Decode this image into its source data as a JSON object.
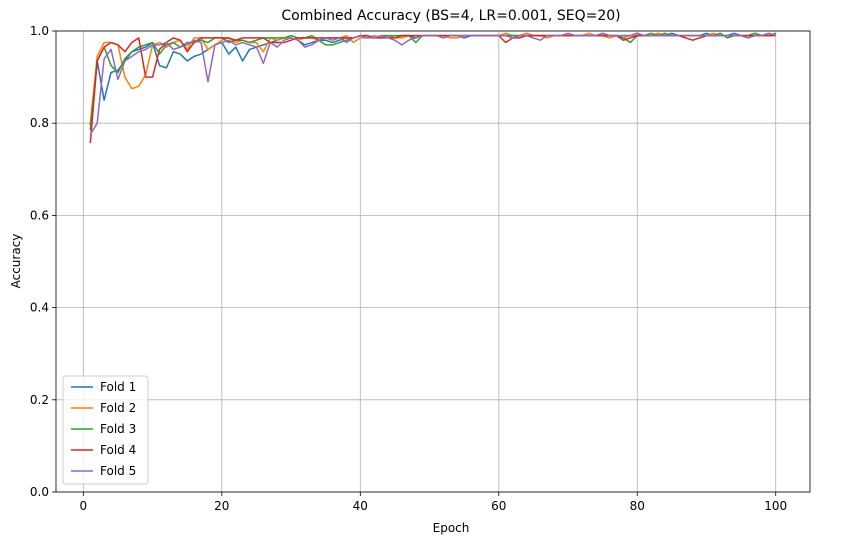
{
  "chart_data": {
    "type": "line",
    "title": "Combined Accuracy (BS=4, LR=0.001, SEQ=20)",
    "xlabel": "Epoch",
    "ylabel": "Accuracy",
    "xlim": [
      -3.95,
      104.95
    ],
    "ylim": [
      0,
      1.0
    ],
    "xticks": [
      0,
      20,
      40,
      60,
      80,
      100
    ],
    "yticks": [
      0.0,
      0.2,
      0.4,
      0.6,
      0.8,
      1.0
    ],
    "ytick_labels": [
      "0.0",
      "0.2",
      "0.4",
      "0.6",
      "0.8",
      "1.0"
    ],
    "grid": true,
    "legend_position": "lower-left",
    "x_start": 1,
    "series": [
      {
        "name": "Fold 1",
        "color": "#1f77b4",
        "values": [
          0.795,
          0.935,
          0.85,
          0.91,
          0.915,
          0.935,
          0.955,
          0.96,
          0.965,
          0.975,
          0.925,
          0.92,
          0.955,
          0.95,
          0.935,
          0.945,
          0.95,
          0.96,
          0.97,
          0.975,
          0.95,
          0.965,
          0.935,
          0.96,
          0.965,
          0.97,
          0.975,
          0.98,
          0.985,
          0.985,
          0.98,
          0.97,
          0.975,
          0.98,
          0.98,
          0.975,
          0.98,
          0.985,
          0.985,
          0.99,
          0.985,
          0.99,
          0.985,
          0.99,
          0.985,
          0.99,
          0.99,
          0.985,
          0.99,
          0.99,
          0.99,
          0.99,
          0.99,
          0.99,
          0.985,
          0.99,
          0.99,
          0.99,
          0.99,
          0.99,
          0.99,
          0.99,
          0.99,
          0.995,
          0.99,
          0.99,
          0.99,
          0.99,
          0.99,
          0.99,
          0.99,
          0.99,
          0.99,
          0.99,
          0.995,
          0.99,
          0.99,
          0.99,
          0.99,
          0.995,
          0.99,
          0.99,
          0.995,
          0.99,
          0.995,
          0.99,
          0.99,
          0.99,
          0.99,
          0.995,
          0.99,
          0.99,
          0.99,
          0.995,
          0.99,
          0.99,
          0.995,
          0.99,
          0.995,
          0.99
        ]
      },
      {
        "name": "Fold 2",
        "color": "#ff7f0e",
        "values": [
          0.8,
          0.945,
          0.975,
          0.975,
          0.97,
          0.9,
          0.875,
          0.88,
          0.905,
          0.97,
          0.975,
          0.965,
          0.975,
          0.98,
          0.96,
          0.985,
          0.985,
          0.96,
          0.97,
          0.98,
          0.985,
          0.975,
          0.98,
          0.975,
          0.975,
          0.955,
          0.985,
          0.98,
          0.985,
          0.985,
          0.98,
          0.985,
          0.985,
          0.98,
          0.985,
          0.985,
          0.985,
          0.99,
          0.975,
          0.985,
          0.985,
          0.99,
          0.985,
          0.99,
          0.985,
          0.985,
          0.99,
          0.99,
          0.99,
          0.99,
          0.99,
          0.99,
          0.985,
          0.985,
          0.99,
          0.99,
          0.99,
          0.99,
          0.99,
          0.99,
          0.995,
          0.99,
          0.99,
          0.995,
          0.99,
          0.99,
          0.985,
          0.99,
          0.99,
          0.995,
          0.99,
          0.99,
          0.995,
          0.99,
          0.99,
          0.985,
          0.99,
          0.985,
          0.99,
          0.99,
          0.99,
          0.99,
          0.995,
          0.99,
          0.99,
          0.99,
          0.99,
          0.99,
          0.99,
          0.99,
          0.995,
          0.99,
          0.99,
          0.99,
          0.99,
          0.985,
          0.99,
          0.99,
          0.99,
          0.99
        ]
      },
      {
        "name": "Fold 3",
        "color": "#2ca02c",
        "values": [
          0.785,
          0.935,
          0.965,
          0.925,
          0.91,
          0.94,
          0.955,
          0.965,
          0.97,
          0.975,
          0.95,
          0.97,
          0.975,
          0.965,
          0.975,
          0.975,
          0.98,
          0.975,
          0.985,
          0.985,
          0.975,
          0.98,
          0.98,
          0.975,
          0.98,
          0.985,
          0.985,
          0.985,
          0.985,
          0.99,
          0.985,
          0.985,
          0.99,
          0.98,
          0.97,
          0.97,
          0.975,
          0.98,
          0.985,
          0.99,
          0.99,
          0.985,
          0.99,
          0.99,
          0.99,
          0.99,
          0.99,
          0.975,
          0.99,
          0.99,
          0.99,
          0.99,
          0.99,
          0.99,
          0.99,
          0.99,
          0.99,
          0.99,
          0.99,
          0.99,
          0.99,
          0.99,
          0.99,
          0.99,
          0.99,
          0.99,
          0.99,
          0.99,
          0.99,
          0.99,
          0.99,
          0.99,
          0.99,
          0.99,
          0.99,
          0.99,
          0.99,
          0.985,
          0.975,
          0.99,
          0.99,
          0.995,
          0.99,
          0.995,
          0.99,
          0.99,
          0.99,
          0.99,
          0.99,
          0.99,
          0.99,
          0.995,
          0.985,
          0.99,
          0.99,
          0.99,
          0.995,
          0.99,
          0.99,
          0.995
        ]
      },
      {
        "name": "Fold 4",
        "color": "#d62728",
        "values": [
          0.757,
          0.935,
          0.965,
          0.975,
          0.97,
          0.955,
          0.975,
          0.985,
          0.9,
          0.9,
          0.96,
          0.975,
          0.985,
          0.98,
          0.955,
          0.975,
          0.985,
          0.985,
          0.985,
          0.985,
          0.985,
          0.98,
          0.985,
          0.985,
          0.985,
          0.985,
          0.975,
          0.975,
          0.975,
          0.98,
          0.985,
          0.985,
          0.985,
          0.985,
          0.985,
          0.985,
          0.985,
          0.985,
          0.985,
          0.99,
          0.99,
          0.985,
          0.985,
          0.985,
          0.985,
          0.99,
          0.99,
          0.99,
          0.99,
          0.99,
          0.99,
          0.99,
          0.99,
          0.99,
          0.99,
          0.99,
          0.99,
          0.99,
          0.99,
          0.99,
          0.975,
          0.985,
          0.985,
          0.99,
          0.99,
          0.99,
          0.99,
          0.99,
          0.99,
          0.99,
          0.99,
          0.99,
          0.99,
          0.99,
          0.99,
          0.99,
          0.99,
          0.98,
          0.985,
          0.99,
          0.99,
          0.99,
          0.99,
          0.99,
          0.99,
          0.99,
          0.985,
          0.98,
          0.985,
          0.99,
          0.99,
          0.99,
          0.99,
          0.99,
          0.99,
          0.99,
          0.99,
          0.99,
          0.99,
          0.99
        ]
      },
      {
        "name": "Fold 5",
        "color": "#9467bd",
        "values": [
          0.775,
          0.8,
          0.94,
          0.96,
          0.895,
          0.935,
          0.945,
          0.955,
          0.96,
          0.97,
          0.97,
          0.975,
          0.96,
          0.965,
          0.97,
          0.98,
          0.975,
          0.89,
          0.97,
          0.975,
          0.98,
          0.97,
          0.975,
          0.97,
          0.965,
          0.93,
          0.975,
          0.965,
          0.98,
          0.985,
          0.98,
          0.965,
          0.97,
          0.98,
          0.985,
          0.98,
          0.985,
          0.975,
          0.985,
          0.99,
          0.985,
          0.985,
          0.99,
          0.985,
          0.98,
          0.97,
          0.98,
          0.985,
          0.99,
          0.99,
          0.99,
          0.985,
          0.99,
          0.99,
          0.99,
          0.99,
          0.99,
          0.99,
          0.99,
          0.99,
          0.99,
          0.985,
          0.99,
          0.99,
          0.985,
          0.98,
          0.99,
          0.99,
          0.99,
          0.995,
          0.99,
          0.99,
          0.99,
          0.99,
          0.995,
          0.99,
          0.99,
          0.99,
          0.99,
          0.995,
          0.99,
          0.99,
          0.99,
          0.99,
          0.99,
          0.99,
          0.99,
          0.99,
          0.99,
          0.99,
          0.99,
          0.99,
          0.99,
          0.99,
          0.99,
          0.985,
          0.99,
          0.99,
          0.995,
          0.99
        ]
      }
    ]
  }
}
